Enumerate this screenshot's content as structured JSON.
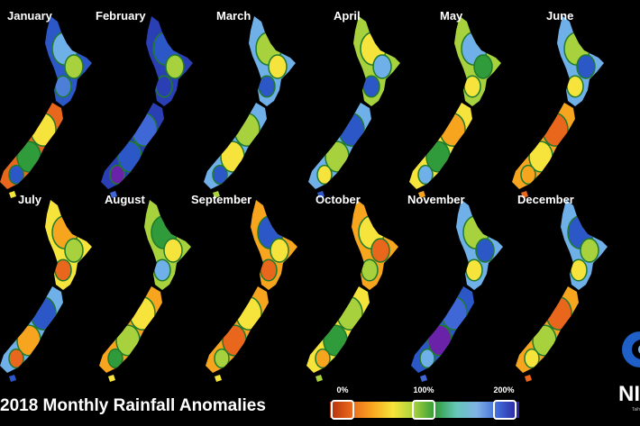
{
  "title": "2018 Monthly Rainfall Anomalies",
  "legend": {
    "ticks": [
      "0%",
      "100%",
      "200%"
    ],
    "colors": [
      "#b2300a",
      "#e8671c",
      "#f7a51f",
      "#f6e33b",
      "#a6d23c",
      "#2f9b3a",
      "#66c7b8",
      "#7fb1e6",
      "#3f68d6",
      "#2a1f9c"
    ]
  },
  "months": [
    {
      "label": "January",
      "north": [
        "#2b57c7",
        "#6fb0e9",
        "#a7d23d",
        "#4d7fd8"
      ],
      "south": [
        "#e8671c",
        "#f6e33b",
        "#2f9b3a",
        "#2b57c7"
      ]
    },
    {
      "label": "February",
      "north": [
        "#2b3fb5",
        "#2b57c7",
        "#a7d23d",
        "#2b3fb5"
      ],
      "south": [
        "#2b3fb5",
        "#3f68d6",
        "#2b57c7",
        "#6a22a8"
      ]
    },
    {
      "label": "March",
      "north": [
        "#6fb0e9",
        "#a7d23d",
        "#f6e33b",
        "#2b57c7"
      ],
      "south": [
        "#6fb0e9",
        "#a7d23d",
        "#f6e33b",
        "#2b57c7"
      ]
    },
    {
      "label": "April",
      "north": [
        "#a7d23d",
        "#f6e33b",
        "#6fb0e9",
        "#2b57c7"
      ],
      "south": [
        "#6fb0e9",
        "#2b57c7",
        "#a7d23d",
        "#f6e33b"
      ]
    },
    {
      "label": "May",
      "north": [
        "#a7d23d",
        "#6fb0e9",
        "#2f9b3a",
        "#f6e33b"
      ],
      "south": [
        "#f6e33b",
        "#f7a51f",
        "#2f9b3a",
        "#6fb0e9"
      ]
    },
    {
      "label": "June",
      "north": [
        "#6fb0e9",
        "#a7d23d",
        "#2b57c7",
        "#f6e33b"
      ],
      "south": [
        "#f7a51f",
        "#e8671c",
        "#f6e33b",
        "#f7a51f"
      ]
    },
    {
      "label": "July",
      "north": [
        "#f6e33b",
        "#f7a51f",
        "#a7d23d",
        "#e8671c"
      ],
      "south": [
        "#6fb0e9",
        "#2b57c7",
        "#f7a51f",
        "#e8671c"
      ]
    },
    {
      "label": "August",
      "north": [
        "#a7d23d",
        "#2f9b3a",
        "#f6e33b",
        "#6fb0e9"
      ],
      "south": [
        "#f7a51f",
        "#f6e33b",
        "#a7d23d",
        "#2f9b3a"
      ]
    },
    {
      "label": "September",
      "north": [
        "#f7a51f",
        "#2b57c7",
        "#f6e33b",
        "#e8671c"
      ],
      "south": [
        "#f7a51f",
        "#f6e33b",
        "#e8671c",
        "#a7d23d"
      ]
    },
    {
      "label": "October",
      "north": [
        "#f7a51f",
        "#f6e33b",
        "#e8671c",
        "#a7d23d"
      ],
      "south": [
        "#f6e33b",
        "#a7d23d",
        "#2f9b3a",
        "#f7a51f"
      ]
    },
    {
      "label": "November",
      "north": [
        "#6fb0e9",
        "#a7d23d",
        "#2b57c7",
        "#f6e33b"
      ],
      "south": [
        "#2b57c7",
        "#3f68d6",
        "#6a22a8",
        "#6fb0e9"
      ]
    },
    {
      "label": "December",
      "north": [
        "#6fb0e9",
        "#2b57c7",
        "#a7d23d",
        "#f6e33b"
      ],
      "south": [
        "#f7a51f",
        "#e8671c",
        "#a7d23d",
        "#f6e33b"
      ]
    }
  ],
  "logo": {
    "text": "NI",
    "sub": "Taih"
  }
}
